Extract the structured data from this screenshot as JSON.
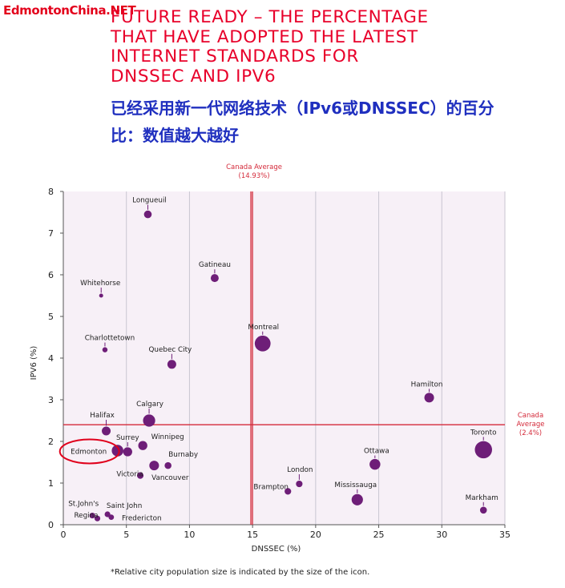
{
  "watermark": "EdmontonChina.NET",
  "title_lines": [
    "FUTURE READY – THE PERCENTAGE",
    "THAT HAVE ADOPTED THE LATEST",
    "INTERNET STANDARDS FOR",
    "DNSSEC AND IPV6"
  ],
  "subtitle_lines": [
    "已经采用新一代网络技术（IPv6或DNSSEC）的百分",
    "比：数值越大越好"
  ],
  "footnote": "*Relative city population size is indicated by the size of the icon.",
  "colors": {
    "plot_background": "#f7f0f7",
    "grid": "#c9c6d2",
    "reference_line": "#d42a3a",
    "bubble": "#6e1e78",
    "highlight_ring": "#e0001b",
    "title": "#e8002a",
    "subtitle": "#1f2fbf"
  },
  "chart_data": {
    "type": "scatter",
    "xlabel": "DNSSEC (%)",
    "ylabel": "IPV6 (%)",
    "xlim": [
      0,
      35
    ],
    "ylim": [
      0,
      8
    ],
    "x_ticks": [
      0,
      5,
      10,
      15,
      20,
      25,
      30,
      35
    ],
    "y_ticks": [
      0,
      1,
      2,
      3,
      4,
      5,
      6,
      7,
      8
    ],
    "grid": "vertical",
    "bubble_size_meaning": "relative city population",
    "highlighted_point": "Edmonton",
    "reference_lines": [
      {
        "axis": "x",
        "value": 14.93,
        "label": [
          "Canada Average",
          "(14.93%)"
        ]
      },
      {
        "axis": "y",
        "value": 2.4,
        "label": [
          "Canada",
          "Average",
          "(2.4%)"
        ]
      }
    ],
    "points": [
      {
        "name": "Longueuil",
        "x": 6.7,
        "y": 7.45,
        "size": 1.6
      },
      {
        "name": "Whitehorse",
        "x": 3.0,
        "y": 5.5,
        "size": 0.3
      },
      {
        "name": "Gatineau",
        "x": 12.0,
        "y": 5.92,
        "size": 1.7
      },
      {
        "name": "Charlottetown",
        "x": 3.3,
        "y": 4.2,
        "size": 0.7
      },
      {
        "name": "Quebec City",
        "x": 8.6,
        "y": 3.85,
        "size": 2.0
      },
      {
        "name": "Montreal",
        "x": 15.8,
        "y": 4.35,
        "size": 4.5
      },
      {
        "name": "Hamilton",
        "x": 29.0,
        "y": 3.05,
        "size": 2.3
      },
      {
        "name": "Halifax",
        "x": 3.4,
        "y": 2.25,
        "size": 2.0
      },
      {
        "name": "Calgary",
        "x": 6.8,
        "y": 2.5,
        "size": 3.2
      },
      {
        "name": "Winnipeg",
        "x": 6.3,
        "y": 1.9,
        "size": 2.1
      },
      {
        "name": "Surrey",
        "x": 5.1,
        "y": 1.75,
        "size": 2.1
      },
      {
        "name": "Edmonton",
        "x": 4.3,
        "y": 1.78,
        "size": 3.0
      },
      {
        "name": "Burnaby",
        "x": 8.3,
        "y": 1.42,
        "size": 1.3
      },
      {
        "name": "Victoria",
        "x": 6.1,
        "y": 1.18,
        "size": 1.2
      },
      {
        "name": "Vancouver",
        "x": 7.2,
        "y": 1.42,
        "size": 2.3
      },
      {
        "name": "Toronto",
        "x": 33.3,
        "y": 1.8,
        "size": 5.0
      },
      {
        "name": "Ottawa",
        "x": 24.7,
        "y": 1.45,
        "size": 2.7
      },
      {
        "name": "London",
        "x": 18.7,
        "y": 0.98,
        "size": 1.2
      },
      {
        "name": "Brampton",
        "x": 17.8,
        "y": 0.8,
        "size": 1.2
      },
      {
        "name": "Mississauga",
        "x": 23.3,
        "y": 0.6,
        "size": 2.9
      },
      {
        "name": "Markham",
        "x": 33.3,
        "y": 0.35,
        "size": 1.3
      },
      {
        "name": "St.John's",
        "x": 2.3,
        "y": 0.22,
        "size": 0.9
      },
      {
        "name": "Regina",
        "x": 2.7,
        "y": 0.15,
        "size": 0.9
      },
      {
        "name": "Saint John",
        "x": 3.5,
        "y": 0.25,
        "size": 0.9
      },
      {
        "name": "Fredericton",
        "x": 3.8,
        "y": 0.18,
        "size": 0.8
      }
    ]
  }
}
